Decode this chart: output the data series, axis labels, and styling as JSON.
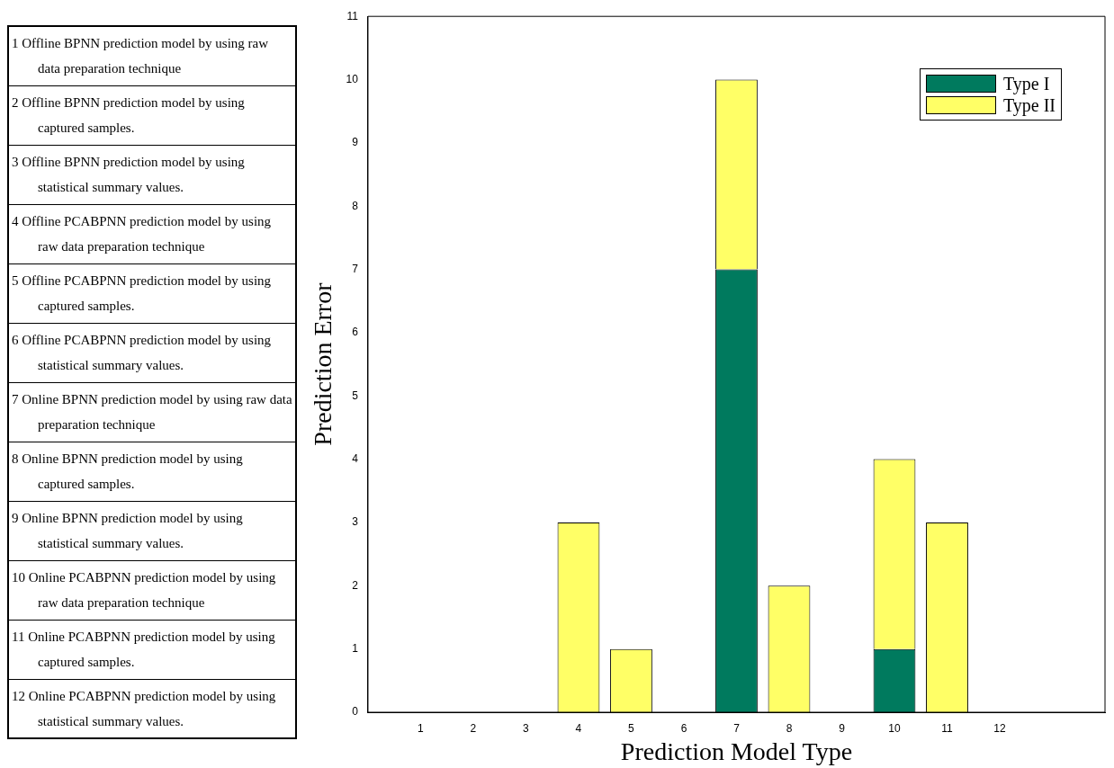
{
  "chart_data": [
    {
      "type": "other",
      "annotations": [
        "1 Offline BPNN prediction model by using raw data preparation technique",
        "2 Offline BPNN prediction model by using captured samples.",
        "3 Offline BPNN prediction model by using statistical summary values.",
        "4 Offline PCABPNN prediction model by using raw data preparation technique",
        "5 Offline PCABPNN prediction model by using captured samples.",
        "6 Offline PCABPNN prediction model by using statistical summary values.",
        "7 Online BPNN prediction model by using raw data preparation technique",
        "8 Online BPNN prediction model by using captured samples.",
        "9 Online BPNN prediction model by using statistical summary values.",
        "10 Online PCABPNN prediction model by using raw data preparation technique",
        "11 Online PCABPNN prediction model by using captured samples.",
        "12 Online PCABPNN prediction model by using statistical summary values."
      ]
    },
    {
      "type": "bar",
      "xlabel": "Prediction Model Type",
      "ylabel": "Prediction Error",
      "x": [
        1,
        2,
        3,
        4,
        5,
        6,
        7,
        8,
        9,
        10,
        11,
        12
      ],
      "xlim": [
        0,
        14
      ],
      "xticks": [
        1,
        2,
        3,
        4,
        5,
        6,
        7,
        8,
        9,
        10,
        11,
        12
      ],
      "ylim": [
        0,
        11
      ],
      "yticks": [
        0,
        1,
        2,
        3,
        4,
        5,
        6,
        7,
        8,
        9,
        10,
        11
      ],
      "stacked": true,
      "legend": "top right",
      "grid": false,
      "series": [
        {
          "name": "Type I",
          "color": "#007a5e",
          "values": [
            0,
            0,
            0,
            0,
            0,
            0,
            7,
            0,
            0,
            1,
            0,
            0
          ]
        },
        {
          "name": "Type II",
          "color": "#ffff66",
          "values": [
            0,
            0,
            0,
            3,
            1,
            0,
            3,
            2,
            0,
            3,
            3,
            0
          ]
        }
      ]
    }
  ]
}
